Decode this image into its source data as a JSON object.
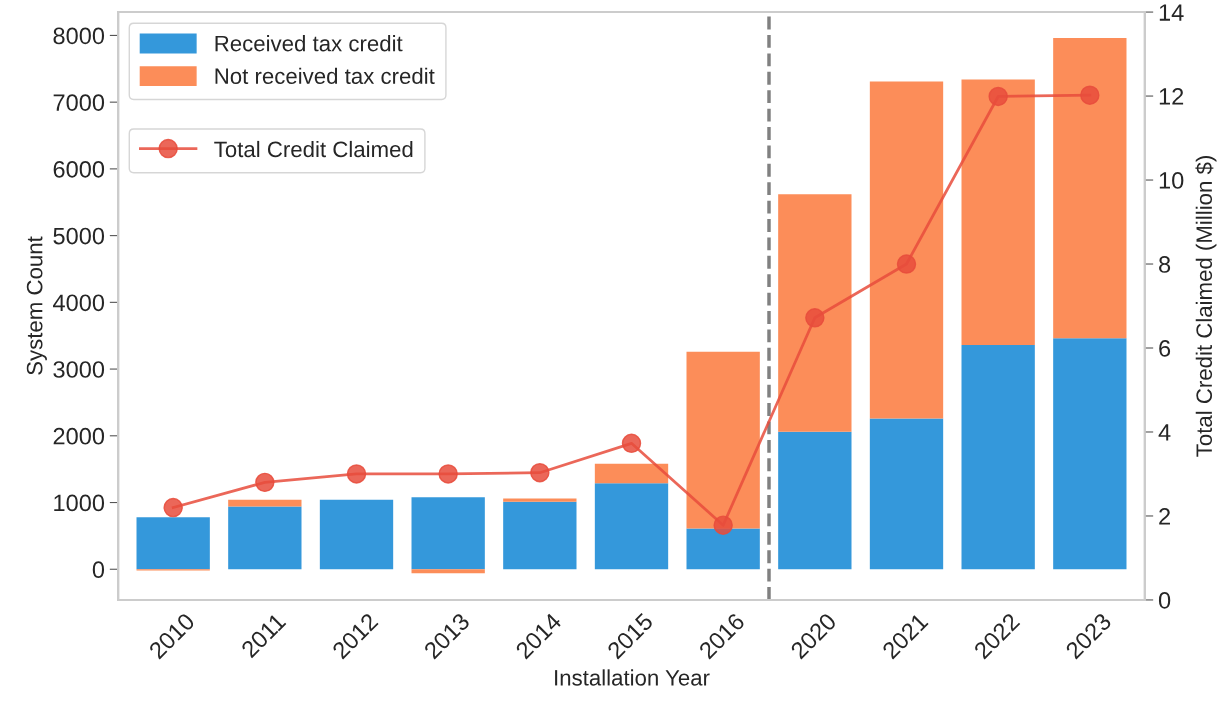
{
  "chart_data": {
    "type": "bar",
    "stacked": true,
    "xlabel": "Installation Year",
    "ylabel": "System Count",
    "y2label": "Total Credit Claimed (Million $)",
    "categories": [
      "2010",
      "2011",
      "2012",
      "2013",
      "2014",
      "2015",
      "2016",
      "2020",
      "2021",
      "2022",
      "2023"
    ],
    "series": [
      {
        "name": "Received tax credit",
        "color": "#3498db",
        "values": [
          780,
          940,
          1040,
          1080,
          1010,
          1290,
          610,
          2060,
          2260,
          3360,
          3460
        ]
      },
      {
        "name": "Not received tax credit",
        "color": "#fc8d59",
        "values": [
          -20,
          100,
          0,
          -60,
          50,
          290,
          2650,
          3560,
          5050,
          3980,
          4500
        ]
      },
      {
        "name": "Total Credit Claimed",
        "type": "line",
        "axis": "y2",
        "color": "#e74c3c",
        "marker": "circle",
        "values": [
          2.2,
          2.8,
          3.0,
          3.0,
          3.03,
          3.73,
          1.78,
          6.72,
          8.0,
          11.99,
          12.02
        ]
      }
    ],
    "ylim": [
      -460,
      8350
    ],
    "yticks": [
      0,
      1000,
      2000,
      3000,
      4000,
      5000,
      6000,
      7000,
      8000
    ],
    "y2lim": [
      0,
      14
    ],
    "y2ticks": [
      0,
      2,
      4,
      6,
      8,
      10,
      12,
      14
    ],
    "grid": false,
    "legend": "top left"
  }
}
